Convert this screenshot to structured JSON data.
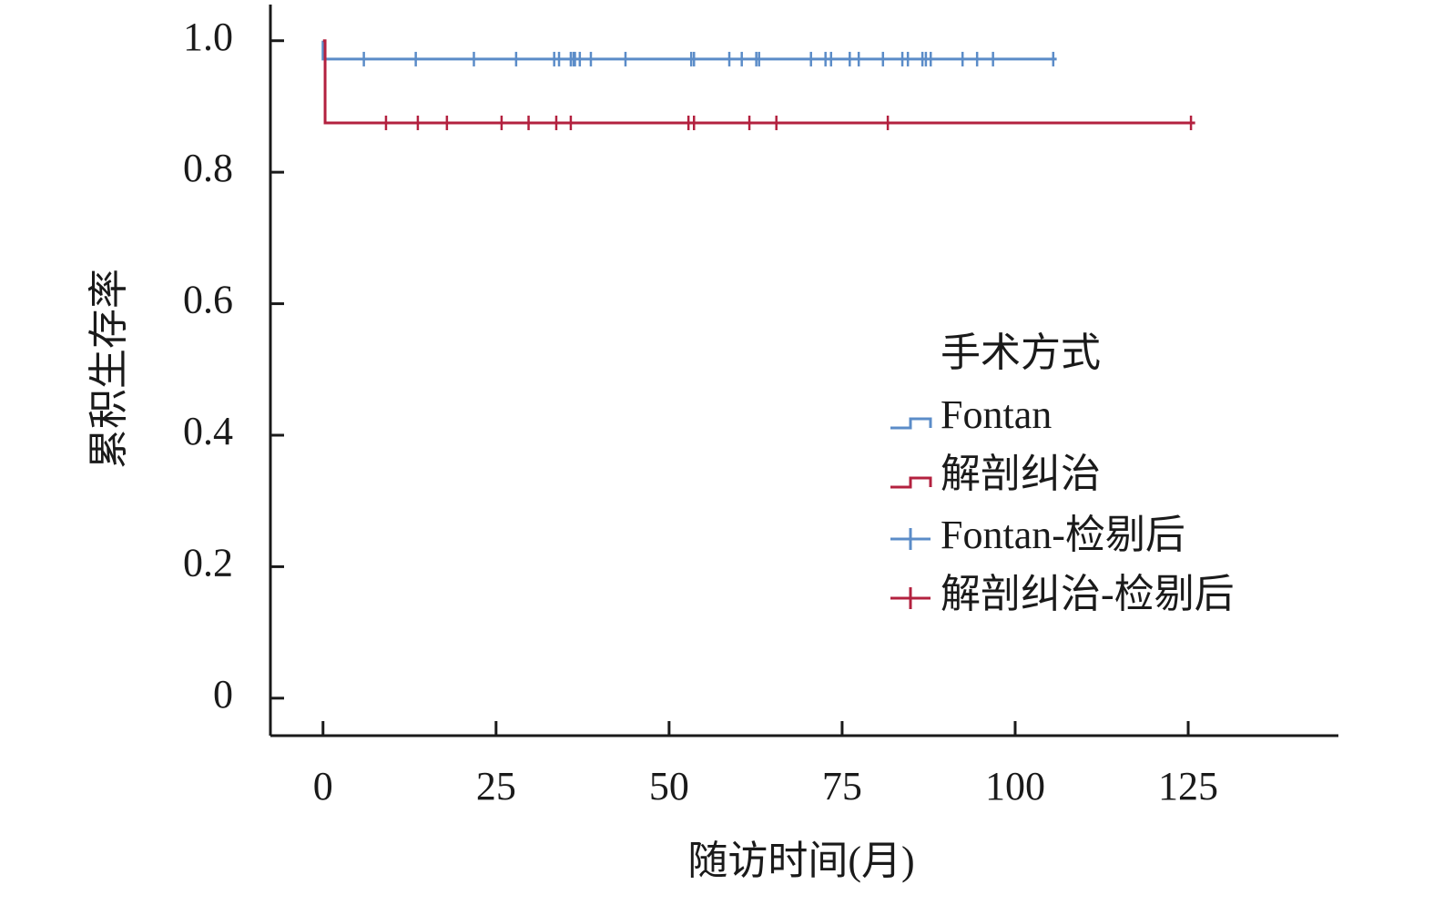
{
  "chart_data": {
    "type": "km",
    "ylabel": "累积生存率",
    "xlabel": "随访时间(月)",
    "legend_title": "手术方式",
    "xlim": [
      -7.6,
      146.7
    ],
    "ylim": [
      -0.057,
      1.055
    ],
    "xticks": [
      0,
      25,
      50,
      75,
      100,
      125
    ],
    "yticks": [
      0,
      0.2,
      0.4,
      0.6,
      0.8,
      {
        "value": 1,
        "label": "1.0"
      }
    ],
    "series": [
      {
        "name": "Fontan",
        "kind": "step",
        "color": "#5b8cc8",
        "x": [
          0,
          0,
          106
        ],
        "values": [
          1,
          0.972,
          0.972
        ]
      },
      {
        "name": "解剖纠治",
        "kind": "step",
        "color": "#b3213f",
        "x": [
          0,
          0.3,
          126
        ],
        "values": [
          1,
          0.875,
          0.875
        ]
      },
      {
        "name": "Fontan-检剔后",
        "kind": "censor",
        "color": "#5b8cc8",
        "x": [
          5.9,
          13.4,
          21.8,
          27.9,
          33.4,
          34.1,
          35.8,
          36.2,
          36.4,
          37.1,
          38.7,
          43.7,
          53.2,
          53.6,
          58.7,
          60.5,
          62.6,
          63.0,
          70.5,
          72.6,
          73.4,
          76.1,
          77.4,
          80.9,
          83.7,
          84.5,
          86.6,
          87.1,
          87.8,
          92.4,
          94.5,
          96.8,
          105.5
        ],
        "values": [
          0.972,
          0.972,
          0.972,
          0.972,
          0.972,
          0.972,
          0.972,
          0.972,
          0.972,
          0.972,
          0.972,
          0.972,
          0.972,
          0.972,
          0.972,
          0.972,
          0.972,
          0.972,
          0.972,
          0.972,
          0.972,
          0.972,
          0.972,
          0.972,
          0.972,
          0.972,
          0.972,
          0.972,
          0.972,
          0.972,
          0.972,
          0.972,
          0.972
        ]
      },
      {
        "name": "解剖纠治-检剔后",
        "kind": "censor",
        "color": "#b3213f",
        "x": [
          9.1,
          13.7,
          17.9,
          25.8,
          29.7,
          33.7,
          35.8,
          52.8,
          53.6,
          61.6,
          65.5,
          81.6,
          125.4
        ],
        "values": [
          0.875,
          0.875,
          0.875,
          0.875,
          0.875,
          0.875,
          0.875,
          0.875,
          0.875,
          0.875,
          0.875,
          0.875,
          0.875
        ]
      }
    ]
  }
}
